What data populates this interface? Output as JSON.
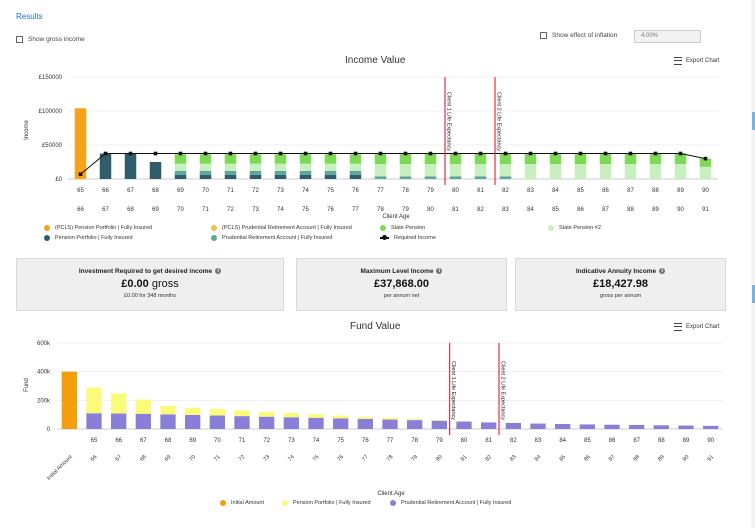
{
  "header": {
    "results_label": "Results",
    "show_gross_income_label": "Show gross income",
    "show_inflation_label": "Show effect of inflation",
    "inflation_value": "4.00%"
  },
  "income_chart": {
    "title": "Income Value",
    "export_label": "Export Chart",
    "ylabel": "Income",
    "xlabel": "Client Age",
    "y_ticks": [
      "£150000",
      "£100000",
      "£50000",
      "£0"
    ],
    "y_tick_values": [
      150000,
      100000,
      50000,
      0
    ],
    "ylim": [
      0,
      150000
    ],
    "upper_ages": [
      "65",
      "66",
      "67",
      "68",
      "69",
      "70",
      "71",
      "72",
      "73",
      "74",
      "75",
      "76",
      "77",
      "78",
      "79",
      "80",
      "81",
      "82",
      "83",
      "84",
      "85",
      "86",
      "87",
      "88",
      "89",
      "90"
    ],
    "lower_ages": [
      "66",
      "67",
      "68",
      "69",
      "70",
      "71",
      "72",
      "73",
      "74",
      "75",
      "76",
      "77",
      "78",
      "79",
      "80",
      "81",
      "82",
      "83",
      "84",
      "85",
      "86",
      "87",
      "88",
      "89",
      "90",
      "91"
    ],
    "marker_1_label": "Client 1 Life Expectancy",
    "marker_2_label": "Client 2 Life Expectancy",
    "marker_1_index": 15,
    "marker_2_index": 17,
    "colors": {
      "pcls_pension": "#f7a21b",
      "pcls_prudential": "#f2c14e",
      "state_pension": "#7ed957",
      "pension_portfolio": "#2f5d6b",
      "prudential_retirement": "#5fa69a",
      "state_pension_2": "#c8efbe",
      "required_income": "#111111",
      "marker": "#e0202a"
    },
    "legend": [
      {
        "key": "pcls_pension",
        "label": "(PCLS) Pension Portfolio | Fully Insured"
      },
      {
        "key": "pcls_prudential",
        "label": "(PCLS) Prudential Retirement Account | Fully Insured"
      },
      {
        "key": "state_pension",
        "label": "State Pension"
      },
      {
        "key": "state_pension_2",
        "label": "State Pension #2"
      },
      {
        "key": "pension_portfolio",
        "label": "Pension Portfolio | Fully Insured"
      },
      {
        "key": "prudential_retirement",
        "label": "Prudential Retirement Account | Fully Insured"
      },
      {
        "key": "required_income",
        "label": "Required Income"
      }
    ]
  },
  "chart_data": [
    {
      "type": "bar",
      "title": "Income Value",
      "xlabel": "Client Age",
      "ylabel": "Income",
      "ylim": [
        0,
        150000
      ],
      "categories": [
        "65",
        "66",
        "67",
        "68",
        "69",
        "70",
        "71",
        "72",
        "73",
        "74",
        "75",
        "76",
        "77",
        "78",
        "79",
        "80",
        "81",
        "82",
        "83",
        "84",
        "85",
        "86",
        "87",
        "88",
        "89",
        "90"
      ],
      "series": [
        {
          "name": "(PCLS) Pension Portfolio | Fully Insured",
          "key": "pcls_pension",
          "values": [
            104000,
            0,
            0,
            0,
            0,
            0,
            0,
            0,
            0,
            0,
            0,
            0,
            0,
            0,
            0,
            0,
            0,
            0,
            0,
            0,
            0,
            0,
            0,
            0,
            0,
            0
          ]
        },
        {
          "name": "Pension Portfolio | Fully Insured",
          "key": "pension_portfolio",
          "values": [
            0,
            37500,
            37500,
            25000,
            6000,
            6000,
            6000,
            6000,
            6000,
            6000,
            6000,
            6000,
            0,
            0,
            0,
            0,
            0,
            0,
            0,
            0,
            0,
            0,
            0,
            0,
            0,
            0
          ]
        },
        {
          "name": "Prudential Retirement Account | Fully Insured",
          "key": "prudential_retirement",
          "values": [
            0,
            0,
            0,
            0,
            6000,
            6000,
            6000,
            6000,
            6000,
            6000,
            6000,
            6000,
            4000,
            4000,
            4000,
            4000,
            4000,
            4000,
            0,
            0,
            0,
            0,
            0,
            0,
            0,
            0
          ]
        },
        {
          "name": "State Pension #2",
          "key": "state_pension_2",
          "values": [
            0,
            0,
            0,
            0,
            10500,
            10500,
            10500,
            10500,
            10500,
            10500,
            10500,
            10500,
            18000,
            18000,
            18000,
            18000,
            18000,
            18000,
            22000,
            22000,
            22000,
            22000,
            22000,
            22000,
            22000,
            18000
          ]
        },
        {
          "name": "State Pension",
          "key": "state_pension",
          "values": [
            0,
            0,
            0,
            0,
            14000,
            14000,
            14000,
            14000,
            14000,
            14000,
            14000,
            14000,
            16000,
            16000,
            16000,
            16000,
            16000,
            16000,
            16000,
            16000,
            16000,
            16000,
            16000,
            16000,
            16000,
            12000
          ]
        },
        {
          "name": "Required Income",
          "key": "required_income",
          "type": "line",
          "values": [
            7000,
            37500,
            37500,
            37500,
            37500,
            37500,
            37500,
            37500,
            37500,
            37500,
            37500,
            37500,
            37500,
            37500,
            37500,
            37500,
            37500,
            37500,
            37500,
            37500,
            37500,
            37500,
            37500,
            37500,
            37500,
            30000
          ]
        }
      ]
    },
    {
      "type": "bar",
      "title": "Fund Value",
      "xlabel": "Client Age",
      "ylabel": "Fund",
      "ylim": [
        0,
        600000
      ],
      "categories": [
        "Initial Amount",
        "66",
        "67",
        "68",
        "69",
        "70",
        "71",
        "72",
        "73",
        "74",
        "75",
        "76",
        "77",
        "78",
        "79",
        "80",
        "81",
        "82",
        "83",
        "84",
        "85",
        "86",
        "87",
        "88",
        "89",
        "90",
        "91"
      ],
      "series": [
        {
          "name": "Initial Amount",
          "key": "initial",
          "values": [
            400000,
            0,
            0,
            0,
            0,
            0,
            0,
            0,
            0,
            0,
            0,
            0,
            0,
            0,
            0,
            0,
            0,
            0,
            0,
            0,
            0,
            0,
            0,
            0,
            0,
            0,
            0
          ]
        },
        {
          "name": "Pension Portfolio | Fully Insured",
          "key": "pension_portfolio",
          "values": [
            0,
            180000,
            140000,
            100000,
            60000,
            50000,
            45000,
            40000,
            35000,
            30000,
            25000,
            20000,
            15000,
            12000,
            8000,
            4000,
            0,
            0,
            0,
            0,
            0,
            0,
            0,
            0,
            0,
            0,
            0
          ]
        },
        {
          "name": "Prudential Retirement Account | Fully Insured",
          "key": "prudential",
          "values": [
            0,
            110000,
            108000,
            106000,
            102000,
            98000,
            94000,
            90000,
            86000,
            82000,
            78000,
            74000,
            70000,
            66000,
            62000,
            58000,
            52000,
            46000,
            42000,
            38000,
            35000,
            32000,
            30000,
            28000,
            26000,
            24000,
            22000
          ]
        }
      ]
    }
  ],
  "cards": [
    {
      "title": "Investment Required to get desired income",
      "value_amount": "£0.00",
      "value_unit": "gross",
      "sub": "£0.00 for 348 months"
    },
    {
      "title": "Maximum Level Income",
      "value_amount": "£37,868.00",
      "sub": "per annum net"
    },
    {
      "title": "Indicative Annuity Income",
      "value_amount": "£18,427.98",
      "sub": "gross per annum"
    }
  ],
  "fund_chart": {
    "title": "Fund Value",
    "export_label": "Export Chart",
    "ylabel": "Fund",
    "xlabel": "Client Age",
    "y_ticks": [
      "600k",
      "400k",
      "200k",
      "0"
    ],
    "y_tick_values": [
      600000,
      400000,
      200000,
      0
    ],
    "upper_ages": [
      "65",
      "66",
      "67",
      "68",
      "69",
      "70",
      "71",
      "72",
      "73",
      "74",
      "75",
      "76",
      "77",
      "78",
      "79",
      "80",
      "81",
      "82",
      "83",
      "84",
      "85",
      "86",
      "87",
      "88",
      "89",
      "90"
    ],
    "rotated_labels": [
      "Initial Amount",
      "66",
      "67",
      "68",
      "69",
      "70",
      "71",
      "72",
      "73",
      "74",
      "75",
      "76",
      "77",
      "78",
      "79",
      "80",
      "81",
      "82",
      "83",
      "84",
      "85",
      "86",
      "87",
      "88",
      "89",
      "90",
      "91"
    ],
    "marker_1_label": "Client 1 Life Expectancy",
    "marker_2_label": "Client 2 Life Expectancy",
    "marker_1_index": 16,
    "marker_2_index": 18,
    "colors": {
      "initial": "#f59e0b",
      "pension_portfolio": "#fbfb7a",
      "prudential": "#8a7fd8",
      "marker": "#e0202a"
    },
    "legend": [
      {
        "key": "initial",
        "label": "Initial Amount"
      },
      {
        "key": "pension_portfolio",
        "label": "Pension Portfolio | Fully Insured"
      },
      {
        "key": "prudential",
        "label": "Prudential Retirement Account | Fully Insured"
      }
    ]
  }
}
